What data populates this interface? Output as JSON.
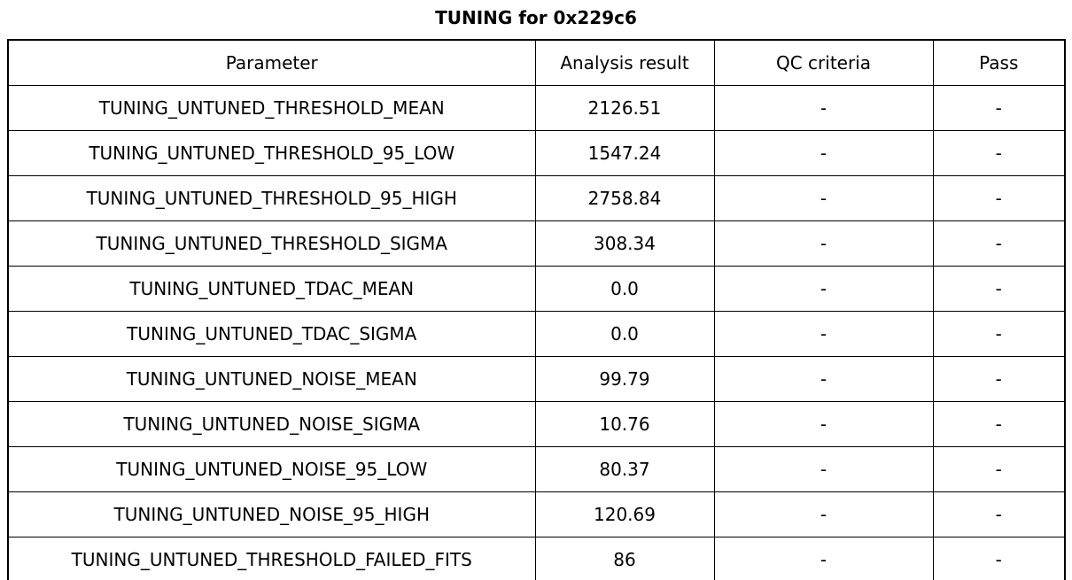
{
  "page": {
    "background_color": "#ffffff",
    "border_color": "#000000",
    "text_color": "#000000"
  },
  "title": "TUNING for 0x229c6",
  "table": {
    "headers": [
      "Parameter",
      "Analysis result",
      "QC criteria",
      "Pass"
    ],
    "rows": [
      [
        "TUNING_UNTUNED_THRESHOLD_MEAN",
        "2126.51",
        "-",
        "-"
      ],
      [
        "TUNING_UNTUNED_THRESHOLD_95_LOW",
        "1547.24",
        "-",
        "-"
      ],
      [
        "TUNING_UNTUNED_THRESHOLD_95_HIGH",
        "2758.84",
        "-",
        "-"
      ],
      [
        "TUNING_UNTUNED_THRESHOLD_SIGMA",
        "308.34",
        "-",
        "-"
      ],
      [
        "TUNING_UNTUNED_TDAC_MEAN",
        "0.0",
        "-",
        "-"
      ],
      [
        "TUNING_UNTUNED_TDAC_SIGMA",
        "0.0",
        "-",
        "-"
      ],
      [
        "TUNING_UNTUNED_NOISE_MEAN",
        "99.79",
        "-",
        "-"
      ],
      [
        "TUNING_UNTUNED_NOISE_SIGMA",
        "10.76",
        "-",
        "-"
      ],
      [
        "TUNING_UNTUNED_NOISE_95_LOW",
        "80.37",
        "-",
        "-"
      ],
      [
        "TUNING_UNTUNED_NOISE_95_HIGH",
        "120.69",
        "-",
        "-"
      ],
      [
        "TUNING_UNTUNED_THRESHOLD_FAILED_FITS",
        "86",
        "-",
        "-"
      ]
    ]
  },
  "chart_data": {
    "type": "table",
    "title": "TUNING for 0x229c6",
    "columns": [
      "Parameter",
      "Analysis result",
      "QC criteria",
      "Pass"
    ],
    "rows": [
      {
        "parameter": "TUNING_UNTUNED_THRESHOLD_MEAN",
        "analysis_result": 2126.51,
        "qc_criteria": "-",
        "pass": "-"
      },
      {
        "parameter": "TUNING_UNTUNED_THRESHOLD_95_LOW",
        "analysis_result": 1547.24,
        "qc_criteria": "-",
        "pass": "-"
      },
      {
        "parameter": "TUNING_UNTUNED_THRESHOLD_95_HIGH",
        "analysis_result": 2758.84,
        "qc_criteria": "-",
        "pass": "-"
      },
      {
        "parameter": "TUNING_UNTUNED_THRESHOLD_SIGMA",
        "analysis_result": 308.34,
        "qc_criteria": "-",
        "pass": "-"
      },
      {
        "parameter": "TUNING_UNTUNED_TDAC_MEAN",
        "analysis_result": 0.0,
        "qc_criteria": "-",
        "pass": "-"
      },
      {
        "parameter": "TUNING_UNTUNED_TDAC_SIGMA",
        "analysis_result": 0.0,
        "qc_criteria": "-",
        "pass": "-"
      },
      {
        "parameter": "TUNING_UNTUNED_NOISE_MEAN",
        "analysis_result": 99.79,
        "qc_criteria": "-",
        "pass": "-"
      },
      {
        "parameter": "TUNING_UNTUNED_NOISE_SIGMA",
        "analysis_result": 10.76,
        "qc_criteria": "-",
        "pass": "-"
      },
      {
        "parameter": "TUNING_UNTUNED_NOISE_95_LOW",
        "analysis_result": 80.37,
        "qc_criteria": "-",
        "pass": "-"
      },
      {
        "parameter": "TUNING_UNTUNED_NOISE_95_HIGH",
        "analysis_result": 120.69,
        "qc_criteria": "-",
        "pass": "-"
      },
      {
        "parameter": "TUNING_UNTUNED_THRESHOLD_FAILED_FITS",
        "analysis_result": 86,
        "qc_criteria": "-",
        "pass": "-"
      }
    ],
    "layout": {
      "grid": true,
      "header_row": true,
      "cell_alignment": "center"
    }
  }
}
